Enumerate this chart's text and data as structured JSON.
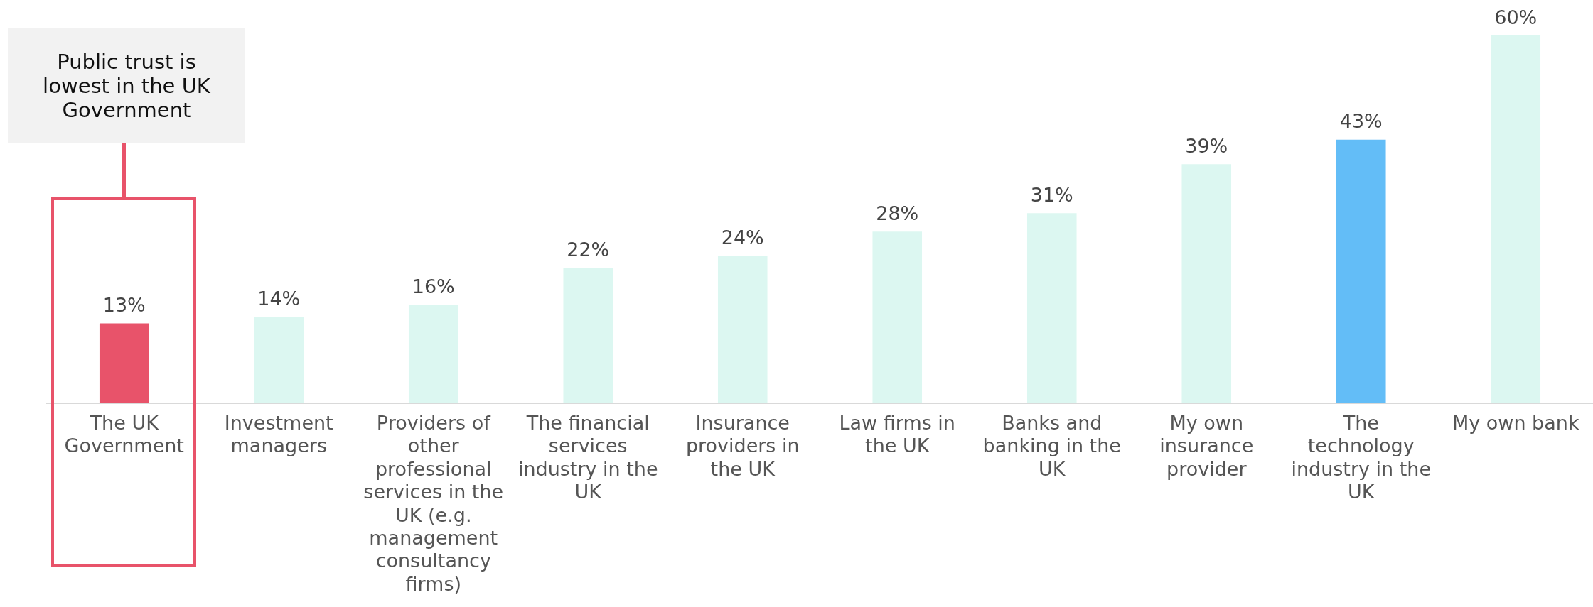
{
  "chart_data": {
    "type": "bar",
    "categories": [
      "The UK Government",
      "Investment managers",
      "Providers of other professional services in the UK (e.g. management consultancy firms)",
      "The financial services industry in the UK",
      "Insurance providers in the UK",
      "Law firms in the UK",
      "Banks and banking in the UK",
      "My own insurance provider",
      "The technology industry in the UK",
      "My own bank"
    ],
    "values": [
      13,
      14,
      16,
      22,
      24,
      28,
      31,
      39,
      43,
      60
    ],
    "colors": [
      "#e8536a",
      "#dcf7f1",
      "#dcf7f1",
      "#dcf7f1",
      "#dcf7f1",
      "#dcf7f1",
      "#dcf7f1",
      "#dcf7f1",
      "#63bdf7",
      "#dcf7f1"
    ],
    "value_labels": [
      "13%",
      "14%",
      "16%",
      "22%",
      "24%",
      "28%",
      "31%",
      "39%",
      "43%",
      "60%"
    ],
    "annotations": [
      "Public trust is lowest in the UK Government"
    ],
    "grid": false,
    "legend": false
  }
}
